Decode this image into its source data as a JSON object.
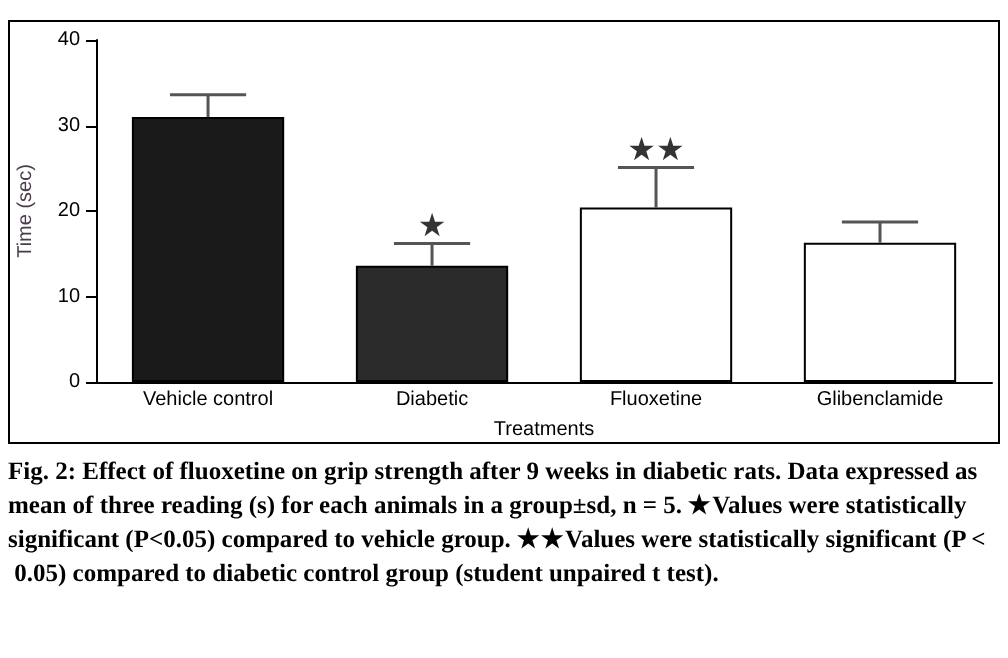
{
  "chart_data": {
    "type": "bar",
    "xlabel": "Treatments",
    "ylabel": "Time (sec)",
    "categories": [
      "Vehicle control",
      "Diabetic",
      "Fluoxetine",
      "Glibenclamide"
    ],
    "values": [
      31.0,
      13.6,
      20.4,
      16.3
    ],
    "colors": [
      "#1a1a1a",
      "#2a2a2a",
      "#ffffff",
      "#ffffff"
    ],
    "errors": [
      [
        31.0,
        33.6
      ],
      [
        13.6,
        16.2
      ],
      [
        20.4,
        25.1
      ],
      [
        16.3,
        18.7
      ]
    ],
    "ylim": [
      0,
      40
    ],
    "yticks": [
      0,
      10,
      20,
      30,
      40
    ],
    "grid": false,
    "annotations": [
      {
        "text": "★",
        "x": "Diabetic",
        "y": 16.2
      },
      {
        "text": "★★",
        "x": "Fluoxetine",
        "y": 25.1
      },
      "Fig. 2: Effect of fluoxetine on grip strength after 9 weeks in diabetic rats. Data expressed as mean of three reading (s) for each animals in a group±sd, n = 5. ★Values were statistically significant (P<0.05) compared to vehicle group. ★★Values were statistically significant (P < 0.05) compared to diabetic control group (student unpaired t test)."
    ]
  }
}
